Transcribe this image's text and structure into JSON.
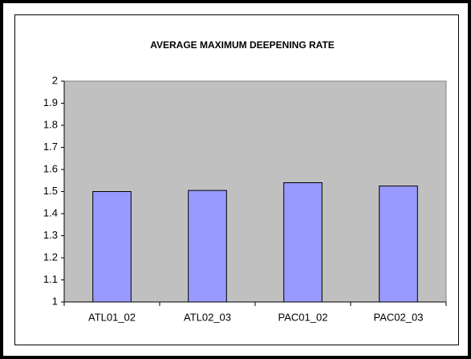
{
  "chart_data": {
    "type": "bar",
    "title": "AVERAGE MAXIMUM DEEPENING RATE",
    "categories": [
      "ATL01_02",
      "ATL02_03",
      "PAC01_02",
      "PAC02_03"
    ],
    "values": [
      1.5,
      1.505,
      1.54,
      1.525
    ],
    "color": "#9999ff",
    "ylim": [
      1,
      2
    ],
    "yticks": [
      1,
      1.1,
      1.2,
      1.3,
      1.4,
      1.5,
      1.6,
      1.7,
      1.8,
      1.9,
      2
    ],
    "grid": false
  }
}
